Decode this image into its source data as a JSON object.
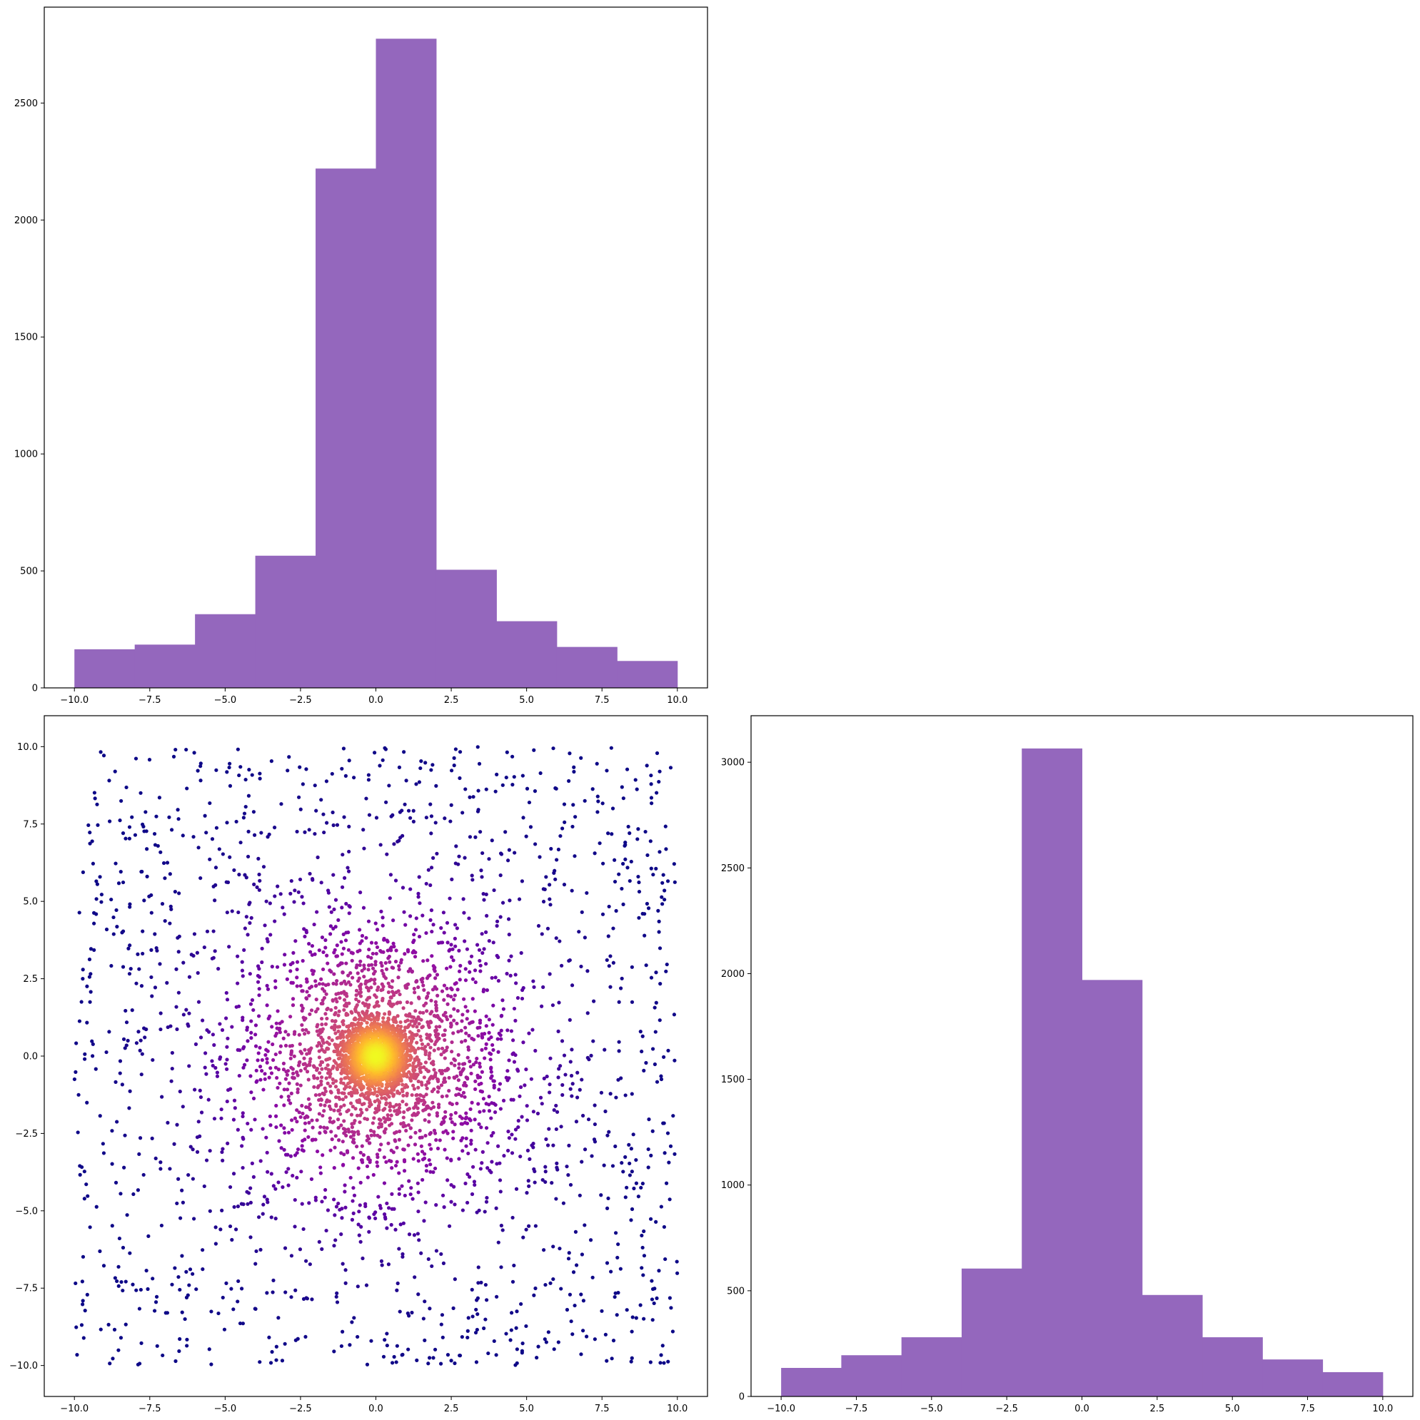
{
  "chart_data": [
    {
      "panel": "top-left",
      "type": "bar",
      "subtype": "histogram",
      "bin_edges": [
        -10,
        -8,
        -6,
        -4,
        -2,
        0,
        2,
        4,
        6,
        8,
        10
      ],
      "values": [
        165,
        185,
        315,
        565,
        2220,
        2775,
        505,
        285,
        175,
        115
      ],
      "xlim": [
        -11,
        11
      ],
      "ylim": [
        0,
        2910
      ],
      "xticks": [
        "−10.0",
        "−7.5",
        "−5.0",
        "−2.5",
        "0.0",
        "2.5",
        "5.0",
        "7.5",
        "10.0"
      ],
      "yticks": [
        "0",
        "500",
        "1000",
        "1500",
        "2000",
        "2500"
      ],
      "color": "#9467bd",
      "grid": false
    },
    {
      "panel": "bottom-left",
      "type": "scatter",
      "description_of_points": "about 5000 points; density-colored; concentrated at (0,0) with a uniform background over [-10,10]x[-10,10]",
      "xlim": [
        -11,
        11
      ],
      "ylim": [
        -11,
        11
      ],
      "xticks": [
        "−10.0",
        "−7.5",
        "−5.0",
        "−2.5",
        "0.0",
        "2.5",
        "5.0",
        "7.5",
        "10.0"
      ],
      "yticks": [
        "−10.0",
        "−7.5",
        "−5.0",
        "−2.5",
        "0.0",
        "2.5",
        "5.0",
        "7.5",
        "10.0"
      ],
      "colormap": "plasma",
      "grid": false
    },
    {
      "panel": "bottom-right",
      "type": "bar",
      "subtype": "histogram",
      "bin_edges": [
        -10,
        -8,
        -6,
        -4,
        -2,
        0,
        2,
        4,
        6,
        8,
        10
      ],
      "values": [
        135,
        195,
        280,
        605,
        3065,
        1970,
        480,
        280,
        175,
        115
      ],
      "xlim": [
        -11,
        11
      ],
      "ylim": [
        0,
        3220
      ],
      "xticks": [
        "−10.0",
        "−7.5",
        "−5.0",
        "−2.5",
        "0.0",
        "2.5",
        "5.0",
        "7.5",
        "10.0"
      ],
      "yticks": [
        "0",
        "500",
        "1000",
        "1500",
        "2000",
        "2500",
        "3000"
      ],
      "color": "#9467bd",
      "grid": false
    }
  ]
}
